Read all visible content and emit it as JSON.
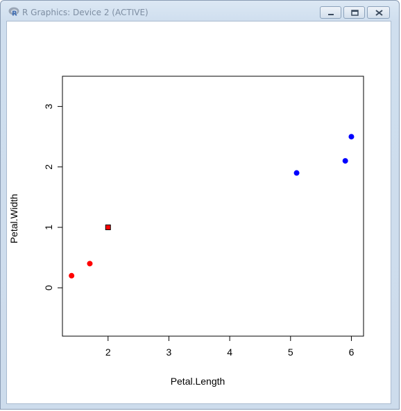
{
  "window": {
    "title": "R Graphics: Device 2 (ACTIVE)",
    "icon": "r-logo-icon",
    "buttons": [
      "minimize-icon",
      "maximize-icon",
      "close-icon"
    ]
  },
  "chart_data": {
    "type": "scatter",
    "xlabel": "Petal.Length",
    "ylabel": "Petal.Width",
    "xlim": [
      1.25,
      6.2
    ],
    "ylim": [
      -0.8,
      3.5
    ],
    "xticks": [
      2,
      3,
      4,
      5,
      6
    ],
    "yticks": [
      0,
      1,
      2,
      3
    ],
    "grid": false,
    "series": [
      {
        "color": "#ff0000",
        "marker": "circle",
        "x": [
          1.4,
          1.7
        ],
        "y": [
          0.2,
          0.4
        ]
      },
      {
        "color": "#0000ff",
        "marker": "circle",
        "x": [
          5.1,
          5.9,
          6.0
        ],
        "y": [
          1.9,
          2.1,
          2.5
        ]
      },
      {
        "color": "#ff0000",
        "marker": "square",
        "x": [
          2.0
        ],
        "y": [
          1.0
        ]
      }
    ]
  }
}
